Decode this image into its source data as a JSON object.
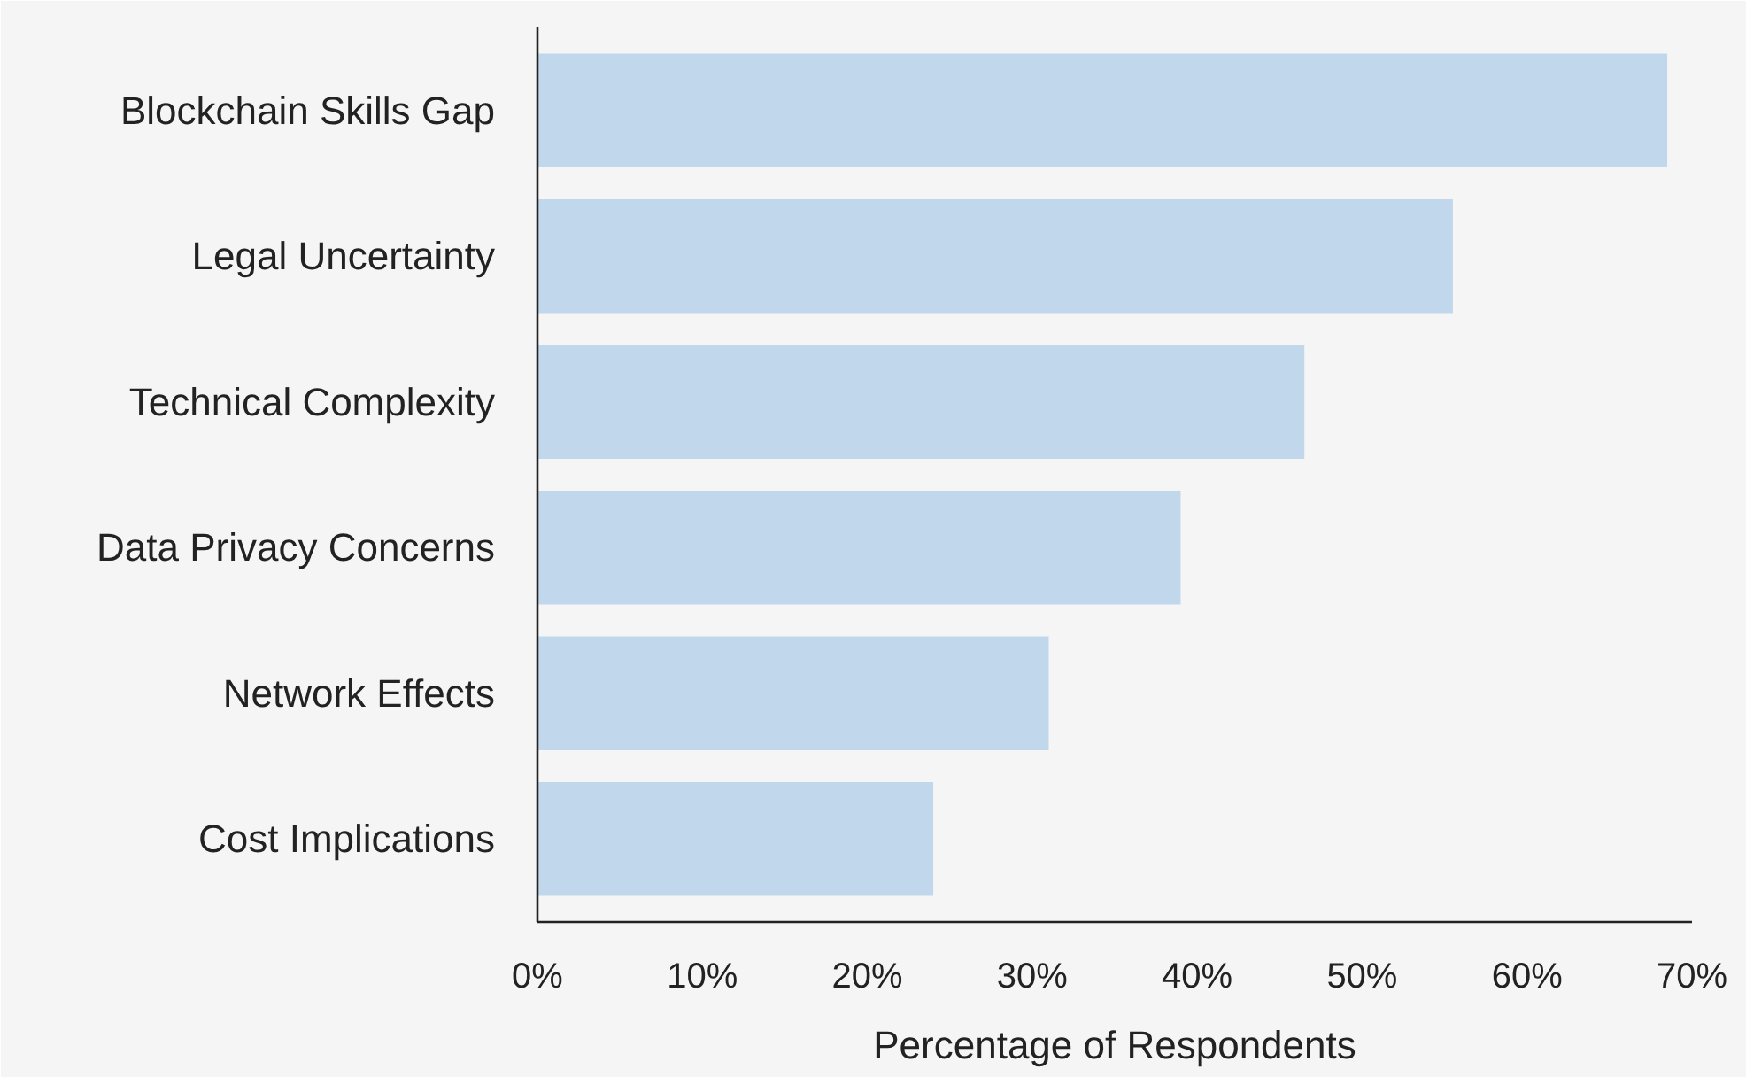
{
  "chart_data": {
    "type": "bar",
    "orientation": "horizontal",
    "xlabel": "Percentage of Respondents",
    "categories": [
      "Blockchain Skills Gap",
      "Legal Uncertainty",
      "Technical Complexity",
      "Data Privacy Concerns",
      "Network Effects",
      "Cost Implications"
    ],
    "values": [
      68.5,
      55.5,
      46.5,
      39,
      31,
      24
    ],
    "color": "#c0d7ec",
    "xlim": [
      0,
      70
    ],
    "xticks": [
      {
        "value": 0,
        "label": "0%"
      },
      {
        "value": 10,
        "label": "10%"
      },
      {
        "value": 20,
        "label": "20%"
      },
      {
        "value": 30,
        "label": "30%"
      },
      {
        "value": 40,
        "label": "40%"
      },
      {
        "value": 50,
        "label": "50%"
      },
      {
        "value": 60,
        "label": "60%"
      },
      {
        "value": 70,
        "label": "70%"
      }
    ],
    "grid": false
  }
}
